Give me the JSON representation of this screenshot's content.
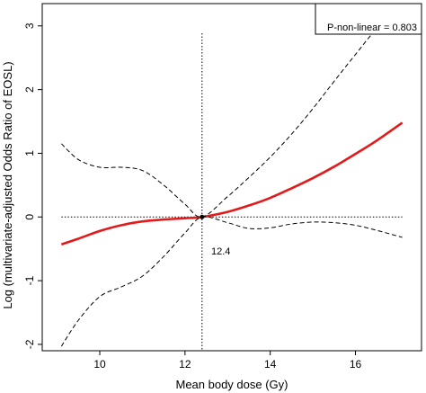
{
  "chart_data": {
    "type": "line",
    "xlabel": "Mean body dose (Gy)",
    "ylabel": "Log (multivariate-adjusted Odds Ratio of EOSL)",
    "xlim": [
      8.65,
      17.55
    ],
    "ylim": [
      -2.1,
      3.35
    ],
    "x_ticks": [
      10,
      12,
      14,
      16
    ],
    "y_ticks": [
      -2,
      -1,
      0,
      1,
      2,
      3
    ],
    "x_tick_labels": [
      "10",
      "12",
      "14",
      "16"
    ],
    "y_tick_labels": [
      "-2",
      "-1",
      "0",
      "1",
      "2",
      "3"
    ],
    "reference_x": 12.4,
    "reference_y": 0,
    "reference_label": "12.4",
    "legend_text": "P-non-linear = 0.803",
    "legend_position": "top-right",
    "series": [
      {
        "name": "",
        "role": "estimate",
        "color": "#e31a1c",
        "style": "solid",
        "x": [
          9.1,
          9.5,
          10.0,
          10.5,
          11.0,
          11.5,
          12.0,
          12.4,
          13.0,
          13.5,
          14.0,
          14.5,
          15.0,
          15.5,
          16.0,
          16.5,
          17.1
        ],
        "y": [
          -0.43,
          -0.34,
          -0.22,
          -0.13,
          -0.07,
          -0.04,
          -0.02,
          0.0,
          0.08,
          0.18,
          0.3,
          0.45,
          0.61,
          0.79,
          0.99,
          1.2,
          1.48
        ]
      },
      {
        "name": "",
        "role": "upper-bound",
        "color": "#000000",
        "style": "dashed",
        "x": [
          9.1,
          9.5,
          10.0,
          10.5,
          11.0,
          11.5,
          12.0,
          12.4,
          13.0,
          13.5,
          14.0,
          14.5,
          15.0,
          15.5,
          16.0,
          16.5,
          17.1
        ],
        "y": [
          1.15,
          0.9,
          0.78,
          0.78,
          0.73,
          0.5,
          0.2,
          0.0,
          0.32,
          0.62,
          0.94,
          1.3,
          1.7,
          2.13,
          2.55,
          2.95,
          3.25
        ]
      },
      {
        "name": "",
        "role": "lower-bound",
        "color": "#000000",
        "style": "dashed",
        "x": [
          9.1,
          9.5,
          10.0,
          10.5,
          11.0,
          11.5,
          12.0,
          12.4,
          13.0,
          13.5,
          14.0,
          14.5,
          15.0,
          15.5,
          16.0,
          16.5,
          17.1
        ],
        "y": [
          -2.03,
          -1.62,
          -1.25,
          -1.1,
          -0.93,
          -0.62,
          -0.25,
          0.0,
          -0.09,
          -0.18,
          -0.17,
          -0.11,
          -0.08,
          -0.09,
          -0.13,
          -0.21,
          -0.32
        ]
      }
    ]
  }
}
